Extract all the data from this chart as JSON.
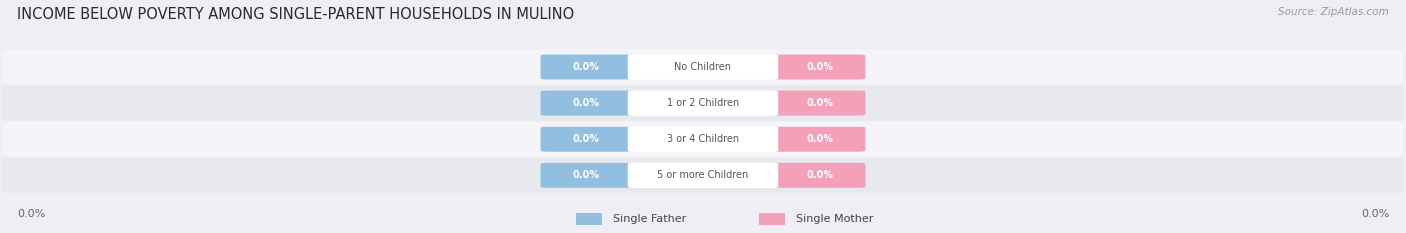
{
  "title": "INCOME BELOW POVERTY AMONG SINGLE-PARENT HOUSEHOLDS IN MULINO",
  "source": "Source: ZipAtlas.com",
  "categories": [
    "No Children",
    "1 or 2 Children",
    "3 or 4 Children",
    "5 or more Children"
  ],
  "single_father_values": [
    0.0,
    0.0,
    0.0,
    0.0
  ],
  "single_mother_values": [
    0.0,
    0.0,
    0.0,
    0.0
  ],
  "father_color": "#92bfdf",
  "mother_color": "#f4a0b8",
  "category_text_color": "#555555",
  "background_color": "#eeeef4",
  "row_color_light": "#f5f5f9",
  "row_color_dark": "#e8e8ef",
  "title_fontsize": 10.5,
  "source_fontsize": 7.5,
  "x_left_label": "0.0%",
  "x_right_label": "0.0%",
  "legend_father": "Single Father",
  "legend_mother": "Single Mother"
}
